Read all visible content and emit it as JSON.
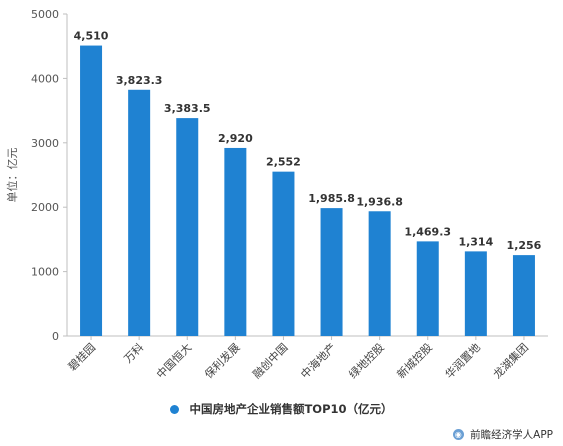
{
  "chart_data": {
    "type": "bar",
    "ylabel": "单位：亿元",
    "ylim": [
      0,
      5000
    ],
    "yticks": [
      0,
      1000,
      2000,
      3000,
      4000,
      5000
    ],
    "categories": [
      "碧桂园",
      "万科",
      "中国恒大",
      "保利发展",
      "融创中国",
      "中海地产",
      "绿地控股",
      "新城控股",
      "华润置地",
      "龙湖集团"
    ],
    "series": [
      {
        "name": "中国房地产企业销售额TOP10（亿元）",
        "values": [
          4510,
          3823.3,
          3383.5,
          2920,
          2552,
          1985.8,
          1936.8,
          1469.3,
          1314,
          1256
        ],
        "labels": [
          "4,510",
          "3,823.3",
          "3,383.5",
          "2,920",
          "2,552",
          "1,985.8",
          "1,936.8",
          "1,469.3",
          "1,314",
          "1,256"
        ]
      }
    ],
    "grid": false,
    "legend_position": "bottom",
    "bar_color": "#1f82d2"
  },
  "watermark": {
    "icon": "qianzhan-logo-icon",
    "text": "前瞻经济学人APP"
  }
}
